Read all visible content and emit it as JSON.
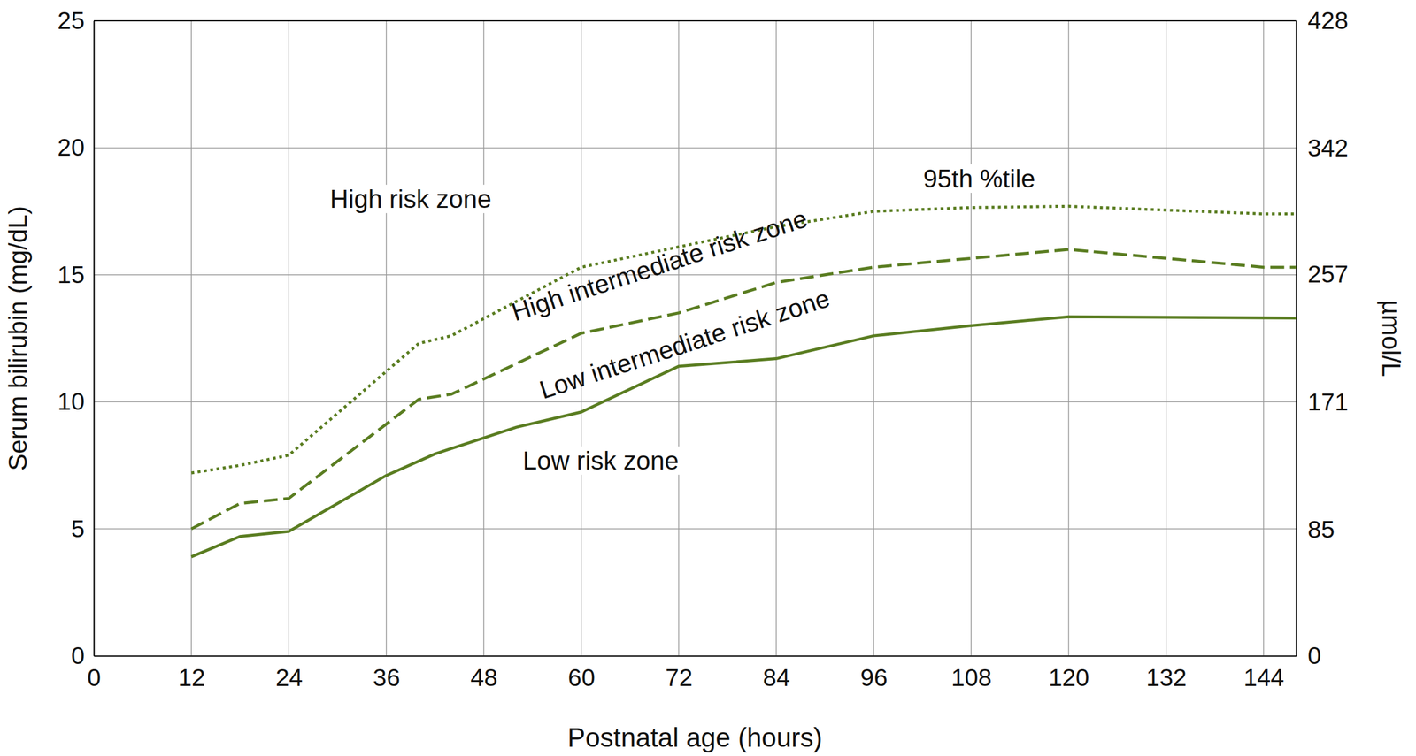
{
  "chart_data": {
    "type": "line",
    "x_label": "Postnatal age (hours)",
    "y_label": "Serum bilirubin (mg/dL)",
    "y2_label": "µmol/L",
    "xlim": [
      0,
      148
    ],
    "xticks": [
      0,
      12,
      24,
      36,
      48,
      60,
      72,
      84,
      96,
      108,
      120,
      132,
      144
    ],
    "ylim": [
      0,
      25
    ],
    "yticks": [
      0,
      5,
      10,
      15,
      20,
      25
    ],
    "y2lim": [
      0,
      428
    ],
    "y2ticks": [
      0,
      85,
      171,
      257,
      342,
      428
    ],
    "grid": true,
    "series": [
      {
        "color": "#5a7d21",
        "line_style": "dotted",
        "x": [
          12,
          18,
          24,
          40,
          44,
          60,
          72,
          84,
          96,
          108,
          120,
          144,
          148
        ],
        "values": [
          7.2,
          7.5,
          7.9,
          12.3,
          12.6,
          15.3,
          16.1,
          16.9,
          17.5,
          17.65,
          17.7,
          17.4,
          17.4
        ]
      },
      {
        "color": "#5a7d21",
        "line_style": "dashed",
        "x": [
          12,
          18,
          24,
          40,
          44,
          60,
          72,
          84,
          96,
          108,
          120,
          144,
          148
        ],
        "values": [
          5.0,
          6.0,
          6.2,
          10.1,
          10.3,
          12.7,
          13.5,
          14.7,
          15.3,
          15.65,
          16.0,
          15.3,
          15.3
        ]
      },
      {
        "color": "#5a7d21",
        "line_style": "solid",
        "x": [
          12,
          18,
          24,
          36,
          42,
          52,
          60,
          72,
          84,
          96,
          108,
          120,
          148
        ],
        "values": [
          3.9,
          4.7,
          4.9,
          7.1,
          7.95,
          9.0,
          9.6,
          11.4,
          11.7,
          12.6,
          13.0,
          13.35,
          13.3
        ]
      }
    ],
    "annotations": [
      {
        "text": "High risk zone",
        "x": 39,
        "y": 17.9
      },
      {
        "text": "95th %tile",
        "x": 109,
        "y": 18.7
      },
      {
        "text": "High intermediate risk zone",
        "x": 69.7,
        "y": 15.3
      },
      {
        "text": "Low intermediate risk zone",
        "x": 72.8,
        "y": 12.2
      },
      {
        "text": "Low risk zone",
        "x": 62.4,
        "y": 7.6
      }
    ]
  }
}
